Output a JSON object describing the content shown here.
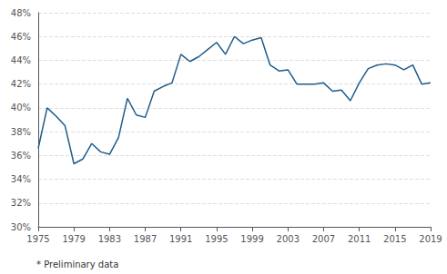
{
  "chart_data": {
    "type": "line",
    "x": [
      1975,
      1976,
      1977,
      1978,
      1979,
      1980,
      1981,
      1982,
      1983,
      1984,
      1985,
      1986,
      1987,
      1988,
      1989,
      1990,
      1991,
      1992,
      1993,
      1994,
      1995,
      1996,
      1997,
      1998,
      1999,
      2000,
      2001,
      2002,
      2003,
      2004,
      2005,
      2006,
      2007,
      2008,
      2009,
      2010,
      2011,
      2012,
      2013,
      2014,
      2015,
      2016,
      2017,
      2018,
      2019
    ],
    "values": [
      0.366,
      0.4,
      0.393,
      0.385,
      0.353,
      0.357,
      0.37,
      0.363,
      0.361,
      0.375,
      0.408,
      0.394,
      0.392,
      0.414,
      0.418,
      0.421,
      0.445,
      0.439,
      0.443,
      0.449,
      0.455,
      0.445,
      0.46,
      0.454,
      0.457,
      0.459,
      0.436,
      0.431,
      0.432,
      0.42,
      0.42,
      0.42,
      0.421,
      0.414,
      0.415,
      0.406,
      0.421,
      0.433,
      0.436,
      0.437,
      0.436,
      0.432,
      0.436,
      0.42,
      0.421
    ],
    "color": "#1f5c8b",
    "xlim": [
      1975,
      2019
    ],
    "xticks": [
      1975,
      1979,
      1983,
      1987,
      1991,
      1995,
      1999,
      2003,
      2007,
      2011,
      2015,
      2019
    ],
    "ylim": [
      0.3,
      0.48
    ],
    "yticks": [
      {
        "value": 0.3,
        "label": "30%"
      },
      {
        "value": 0.32,
        "label": "32%"
      },
      {
        "value": 0.34,
        "label": "34%"
      },
      {
        "value": 0.36,
        "label": "36%"
      },
      {
        "value": 0.38,
        "label": "38%"
      },
      {
        "value": 0.4,
        "label": "40%"
      },
      {
        "value": 0.42,
        "label": "42%"
      },
      {
        "value": 0.44,
        "label": "44%"
      },
      {
        "value": 0.46,
        "label": "46%"
      },
      {
        "value": 0.48,
        "label": "48%"
      }
    ],
    "grid": true,
    "annotations": [
      "* Preliminary data"
    ]
  }
}
